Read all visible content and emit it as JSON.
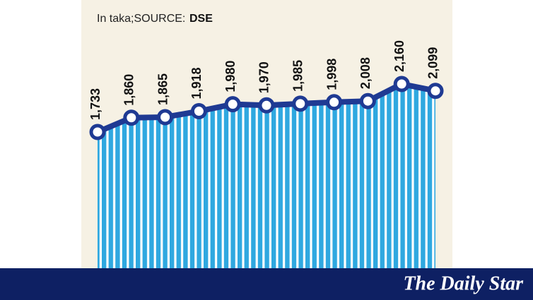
{
  "chart_data": {
    "type": "line",
    "subtitle": "In taka;SOURCE:",
    "source": "DSE",
    "brand": "The Daily Star",
    "categories": [
      null,
      null,
      null,
      null,
      null,
      null,
      null,
      null,
      null,
      null,
      null
    ],
    "values": [
      1733,
      1860,
      1865,
      1918,
      1980,
      1970,
      1985,
      1998,
      2008,
      2160,
      2099
    ],
    "value_labels": [
      "1,733",
      "1,860",
      "1,865",
      "1,918",
      "1,980",
      "1,970",
      "1,985",
      "1,998",
      "2,008",
      "2,160",
      "2,099"
    ],
    "color": "#1f3a93",
    "fill_color": "#2fa8e0"
  }
}
